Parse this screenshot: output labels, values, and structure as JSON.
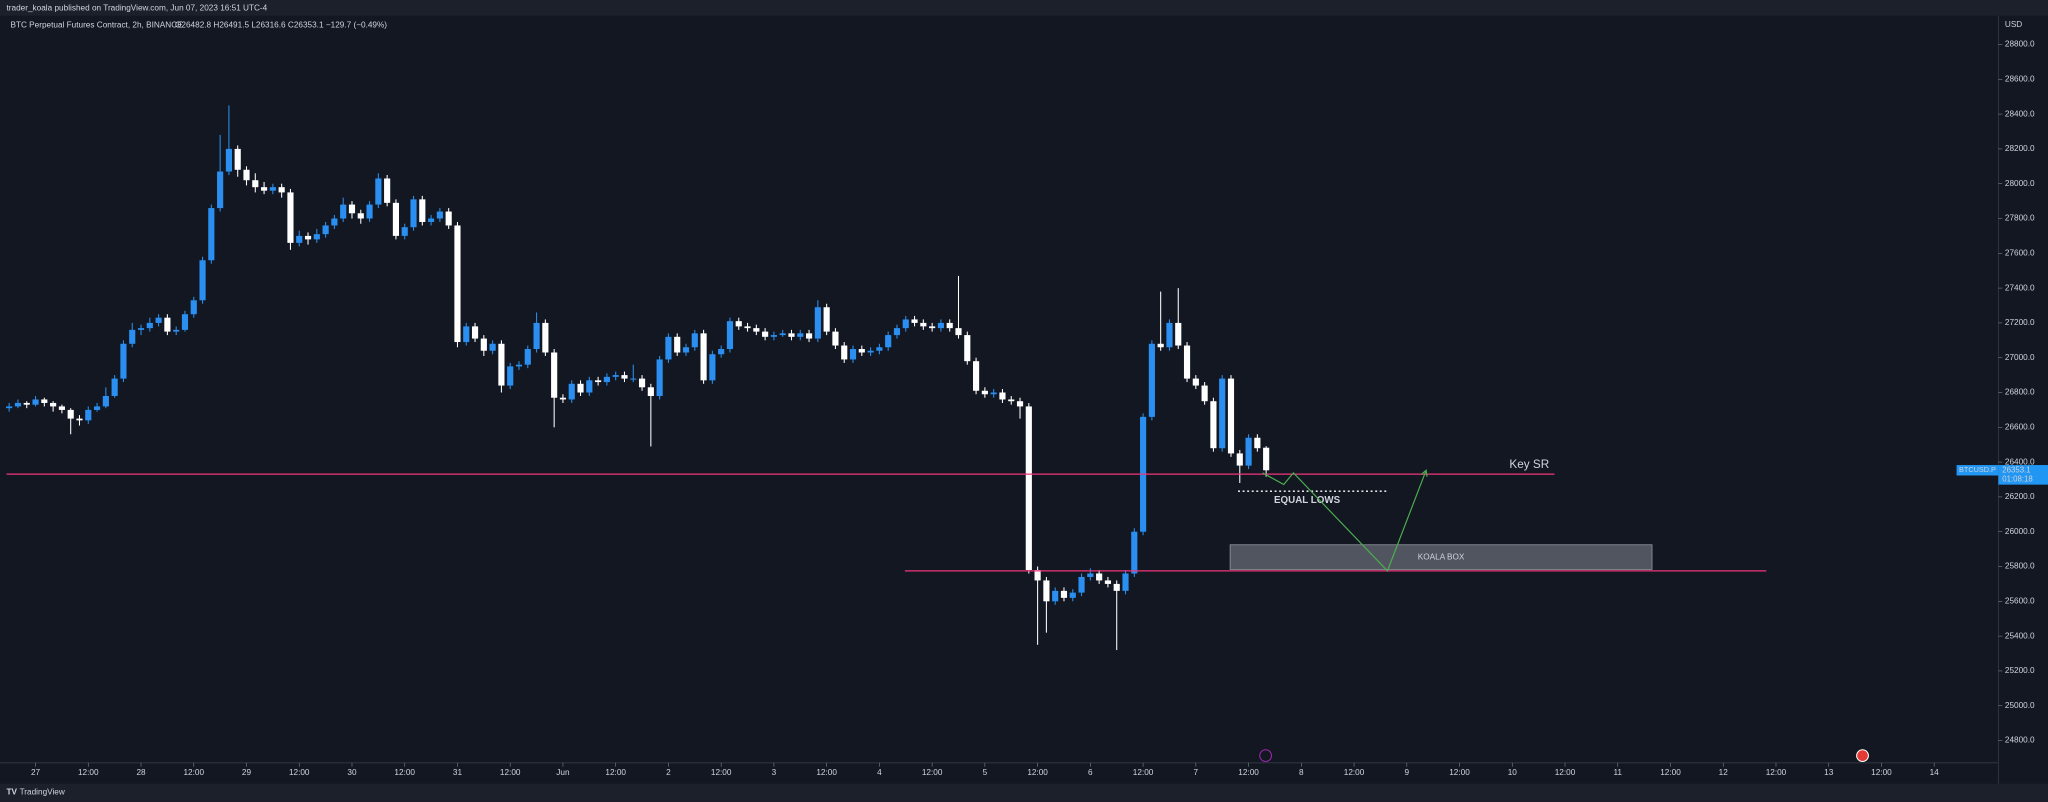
{
  "chart_data": {
    "type": "candlestick",
    "header": "trader_koala published on TradingView.com, Jun 07, 2023 16:51 UTC-4",
    "title": "BTC Perpetual Futures Contract, 2h, BINANCE",
    "legend_text": "O26482.8 H26491.5 L26316.6 C26353.1 −129.7 (−0.49%)",
    "axis_unit": "USD",
    "footer": "TradingView",
    "up_color": "#2a8ff0",
    "down_color": "#ffffff",
    "xlim": [
      -0.3,
      226.3
    ],
    "xticks": [
      {
        "value": 3,
        "label": "27"
      },
      {
        "value": 9,
        "label": "12:00"
      },
      {
        "value": 15,
        "label": "28"
      },
      {
        "value": 21,
        "label": "12:00"
      },
      {
        "value": 27,
        "label": "29"
      },
      {
        "value": 33,
        "label": "12:00"
      },
      {
        "value": 39,
        "label": "30"
      },
      {
        "value": 45,
        "label": "12:00"
      },
      {
        "value": 51,
        "label": "31"
      },
      {
        "value": 57,
        "label": "12:00"
      },
      {
        "value": 63,
        "label": "Jun"
      },
      {
        "value": 69,
        "label": "12:00"
      },
      {
        "value": 75,
        "label": "2"
      },
      {
        "value": 81,
        "label": "12:00"
      },
      {
        "value": 87,
        "label": "3"
      },
      {
        "value": 93,
        "label": "12:00"
      },
      {
        "value": 99,
        "label": "4"
      },
      {
        "value": 105,
        "label": "12:00"
      },
      {
        "value": 111,
        "label": "5"
      },
      {
        "value": 117,
        "label": "12:00"
      },
      {
        "value": 123,
        "label": "6"
      },
      {
        "value": 129,
        "label": "12:00"
      },
      {
        "value": 135,
        "label": "7"
      },
      {
        "value": 141,
        "label": "12:00"
      },
      {
        "value": 147,
        "label": "8"
      },
      {
        "value": 153,
        "label": "12:00"
      },
      {
        "value": 159,
        "label": "9"
      },
      {
        "value": 165,
        "label": "12:00"
      },
      {
        "value": 171,
        "label": "10"
      },
      {
        "value": 177,
        "label": "12:00"
      },
      {
        "value": 183,
        "label": "11"
      },
      {
        "value": 189,
        "label": "12:00"
      },
      {
        "value": 195,
        "label": "12"
      },
      {
        "value": 201,
        "label": "12:00"
      },
      {
        "value": 207,
        "label": "13"
      },
      {
        "value": 213,
        "label": "12:00"
      },
      {
        "value": 219,
        "label": "14"
      }
    ],
    "ylim": [
      24672,
      28958
    ],
    "yticks": [
      {
        "value": 24800,
        "label": "24800.0"
      },
      {
        "value": 25000,
        "label": "25000.0"
      },
      {
        "value": 25200,
        "label": "25200.0"
      },
      {
        "value": 25400,
        "label": "25400.0"
      },
      {
        "value": 25600,
        "label": "25600.0"
      },
      {
        "value": 25800,
        "label": "25800.0"
      },
      {
        "value": 26000,
        "label": "26000.0"
      },
      {
        "value": 26200,
        "label": "26200.0"
      },
      {
        "value": 26400,
        "label": "26400.0"
      },
      {
        "value": 26600,
        "label": "26600.0"
      },
      {
        "value": 26800,
        "label": "26800.0"
      },
      {
        "value": 27000,
        "label": "27000.0"
      },
      {
        "value": 27200,
        "label": "27200.0"
      },
      {
        "value": 27400,
        "label": "27400.0"
      },
      {
        "value": 27600,
        "label": "27600.0"
      },
      {
        "value": 27800,
        "label": "27800.0"
      },
      {
        "value": 28000,
        "label": "28000.0"
      },
      {
        "value": 28200,
        "label": "28200.0"
      },
      {
        "value": 28400,
        "label": "28400.0"
      },
      {
        "value": 28600,
        "label": "28600.0"
      },
      {
        "value": 28800,
        "label": "28800.0"
      }
    ],
    "candles": [
      [
        26710,
        26740,
        26690,
        26720
      ],
      [
        26720,
        26760,
        26710,
        26740
      ],
      [
        26740,
        26750,
        26710,
        26730
      ],
      [
        26730,
        26780,
        26720,
        26760
      ],
      [
        26760,
        26770,
        26720,
        26740
      ],
      [
        26740,
        26750,
        26690,
        26720
      ],
      [
        26720,
        26730,
        26680,
        26700
      ],
      [
        26700,
        26710,
        26560,
        26650
      ],
      [
        26650,
        26670,
        26610,
        26640
      ],
      [
        26640,
        26720,
        26620,
        26700
      ],
      [
        26700,
        26740,
        26690,
        26720
      ],
      [
        26720,
        26830,
        26710,
        26780
      ],
      [
        26780,
        26900,
        26770,
        26880
      ],
      [
        26880,
        27100,
        26860,
        27080
      ],
      [
        27080,
        27200,
        27060,
        27160
      ],
      [
        27160,
        27190,
        27130,
        27170
      ],
      [
        27170,
        27230,
        27150,
        27200
      ],
      [
        27200,
        27250,
        27180,
        27230
      ],
      [
        27230,
        27250,
        27130,
        27150
      ],
      [
        27150,
        27180,
        27130,
        27160
      ],
      [
        27160,
        27270,
        27150,
        27250
      ],
      [
        27250,
        27350,
        27230,
        27330
      ],
      [
        27330,
        27580,
        27310,
        27560
      ],
      [
        27560,
        27880,
        27540,
        27860
      ],
      [
        27860,
        28280,
        27840,
        28070
      ],
      [
        28070,
        28450,
        28050,
        28200
      ],
      [
        28200,
        28220,
        28040,
        28080
      ],
      [
        28080,
        28100,
        27990,
        28020
      ],
      [
        28020,
        28060,
        27950,
        27980
      ],
      [
        27980,
        28010,
        27940,
        27960
      ],
      [
        27960,
        28000,
        27940,
        27980
      ],
      [
        27980,
        28000,
        27920,
        27950
      ],
      [
        27950,
        27970,
        27620,
        27660
      ],
      [
        27660,
        27730,
        27640,
        27700
      ],
      [
        27700,
        27720,
        27650,
        27680
      ],
      [
        27680,
        27740,
        27660,
        27710
      ],
      [
        27710,
        27780,
        27690,
        27760
      ],
      [
        27760,
        27820,
        27740,
        27800
      ],
      [
        27800,
        27920,
        27780,
        27880
      ],
      [
        27880,
        27900,
        27800,
        27830
      ],
      [
        27830,
        27850,
        27770,
        27800
      ],
      [
        27800,
        27900,
        27780,
        27880
      ],
      [
        27880,
        28060,
        27860,
        28030
      ],
      [
        28030,
        28050,
        27870,
        27890
      ],
      [
        27890,
        27910,
        27680,
        27700
      ],
      [
        27700,
        27770,
        27680,
        27750
      ],
      [
        27750,
        27930,
        27730,
        27910
      ],
      [
        27910,
        27930,
        27760,
        27780
      ],
      [
        27780,
        27820,
        27760,
        27800
      ],
      [
        27800,
        27860,
        27780,
        27840
      ],
      [
        27840,
        27860,
        27740,
        27760
      ],
      [
        27760,
        27780,
        27060,
        27090
      ],
      [
        27090,
        27200,
        27070,
        27180
      ],
      [
        27180,
        27200,
        27090,
        27110
      ],
      [
        27110,
        27130,
        27010,
        27040
      ],
      [
        27040,
        27100,
        27020,
        27080
      ],
      [
        27080,
        27100,
        26800,
        26840
      ],
      [
        26840,
        26970,
        26820,
        26950
      ],
      [
        26950,
        26980,
        26930,
        26960
      ],
      [
        26960,
        27070,
        26940,
        27050
      ],
      [
        27050,
        27260,
        27030,
        27200
      ],
      [
        27200,
        27220,
        27010,
        27030
      ],
      [
        27030,
        27050,
        26600,
        26770
      ],
      [
        26770,
        26790,
        26740,
        26760
      ],
      [
        26760,
        26870,
        26740,
        26850
      ],
      [
        26850,
        26870,
        26780,
        26800
      ],
      [
        26800,
        26890,
        26780,
        26870
      ],
      [
        26870,
        26890,
        26840,
        26860
      ],
      [
        26860,
        26910,
        26840,
        26890
      ],
      [
        26890,
        26920,
        26870,
        26900
      ],
      [
        26900,
        26920,
        26860,
        26880
      ],
      [
        26880,
        26960,
        26860,
        26880
      ],
      [
        26880,
        26900,
        26810,
        26830
      ],
      [
        26830,
        26850,
        26490,
        26780
      ],
      [
        26780,
        27010,
        26760,
        26990
      ],
      [
        26990,
        27140,
        26970,
        27120
      ],
      [
        27120,
        27140,
        27010,
        27030
      ],
      [
        27030,
        27080,
        27010,
        27060
      ],
      [
        27060,
        27160,
        27040,
        27140
      ],
      [
        27140,
        27160,
        26850,
        26870
      ],
      [
        26870,
        27040,
        26850,
        27020
      ],
      [
        27020,
        27070,
        27000,
        27050
      ],
      [
        27050,
        27230,
        27030,
        27210
      ],
      [
        27210,
        27230,
        27160,
        27180
      ],
      [
        27180,
        27200,
        27150,
        27170
      ],
      [
        27170,
        27190,
        27130,
        27150
      ],
      [
        27150,
        27170,
        27100,
        27120
      ],
      [
        27120,
        27150,
        27100,
        27130
      ],
      [
        27130,
        27160,
        27120,
        27140
      ],
      [
        27140,
        27160,
        27100,
        27120
      ],
      [
        27120,
        27160,
        27100,
        27140
      ],
      [
        27140,
        27160,
        27090,
        27110
      ],
      [
        27110,
        27330,
        27090,
        27290
      ],
      [
        27290,
        27310,
        27130,
        27150
      ],
      [
        27150,
        27170,
        27050,
        27070
      ],
      [
        27070,
        27090,
        26970,
        26990
      ],
      [
        26990,
        27070,
        26970,
        27050
      ],
      [
        27050,
        27070,
        27010,
        27030
      ],
      [
        27030,
        27060,
        27010,
        27040
      ],
      [
        27040,
        27080,
        27020,
        27060
      ],
      [
        27060,
        27150,
        27040,
        27130
      ],
      [
        27130,
        27190,
        27110,
        27170
      ],
      [
        27170,
        27240,
        27150,
        27220
      ],
      [
        27220,
        27240,
        27180,
        27200
      ],
      [
        27200,
        27220,
        27160,
        27180
      ],
      [
        27180,
        27200,
        27150,
        27170
      ],
      [
        27170,
        27220,
        27150,
        27200
      ],
      [
        27200,
        27220,
        27150,
        27170
      ],
      [
        27170,
        27470,
        27110,
        27130
      ],
      [
        27130,
        27150,
        26960,
        26980
      ],
      [
        26980,
        27000,
        26790,
        26810
      ],
      [
        26810,
        26830,
        26770,
        26790
      ],
      [
        26790,
        26820,
        26770,
        26800
      ],
      [
        26800,
        26820,
        26740,
        26760
      ],
      [
        26760,
        26780,
        26730,
        26750
      ],
      [
        26750,
        26770,
        26650,
        26720
      ],
      [
        26720,
        26740,
        25760,
        25780
      ],
      [
        25780,
        25800,
        25350,
        25720
      ],
      [
        25720,
        25740,
        25420,
        25600
      ],
      [
        25600,
        25680,
        25580,
        25660
      ],
      [
        25660,
        25680,
        25600,
        25620
      ],
      [
        25620,
        25670,
        25600,
        25650
      ],
      [
        25650,
        25760,
        25630,
        25740
      ],
      [
        25740,
        25790,
        25720,
        25760
      ],
      [
        25760,
        25780,
        25700,
        25720
      ],
      [
        25720,
        25740,
        25680,
        25700
      ],
      [
        25700,
        25720,
        25320,
        25660
      ],
      [
        25660,
        25780,
        25640,
        25760
      ],
      [
        25760,
        26020,
        25740,
        26000
      ],
      [
        26000,
        26680,
        25980,
        26660
      ],
      [
        26660,
        27100,
        26640,
        27080
      ],
      [
        27080,
        27380,
        27040,
        27060
      ],
      [
        27060,
        27220,
        27040,
        27200
      ],
      [
        27200,
        27400,
        27050,
        27070
      ],
      [
        27070,
        27090,
        26860,
        26880
      ],
      [
        26880,
        26900,
        26820,
        26840
      ],
      [
        26840,
        26860,
        26730,
        26750
      ],
      [
        26750,
        26770,
        26460,
        26480
      ],
      [
        26480,
        26900,
        26460,
        26880
      ],
      [
        26880,
        26900,
        26430,
        26450
      ],
      [
        26450,
        26470,
        26280,
        26380
      ],
      [
        26380,
        26560,
        26360,
        26540
      ],
      [
        26540,
        26560,
        26460,
        26480
      ],
      [
        26482.8,
        26491.5,
        26316.6,
        26353.1
      ]
    ],
    "price_tag": {
      "symbol": "BTCUSD.P",
      "value": 26353.1,
      "label": "26353.1",
      "countdown": "01:08:18"
    },
    "hlines": [
      {
        "label": "Key SR",
        "value": 26331,
        "x": [
          -0.3,
          175.8
        ],
        "color": "#f0357a"
      },
      {
        "value": 25775,
        "x": [
          101.9,
          199.9
        ],
        "color": "#f0357a"
      }
    ],
    "equal_lows": {
      "label": "EQUAL LOWS",
      "value": 26233,
      "x": [
        139.8,
        156.7
      ]
    },
    "box": {
      "label": "KOALA BOX",
      "y": [
        25783,
        25925
      ],
      "x": [
        138.9,
        186.9
      ]
    },
    "path": {
      "color": "#4caf50",
      "x": [
        142.6,
        145.0,
        146.1,
        156.8,
        161.2
      ],
      "y": [
        26338,
        26271,
        26338,
        25775,
        26353
      ]
    }
  }
}
